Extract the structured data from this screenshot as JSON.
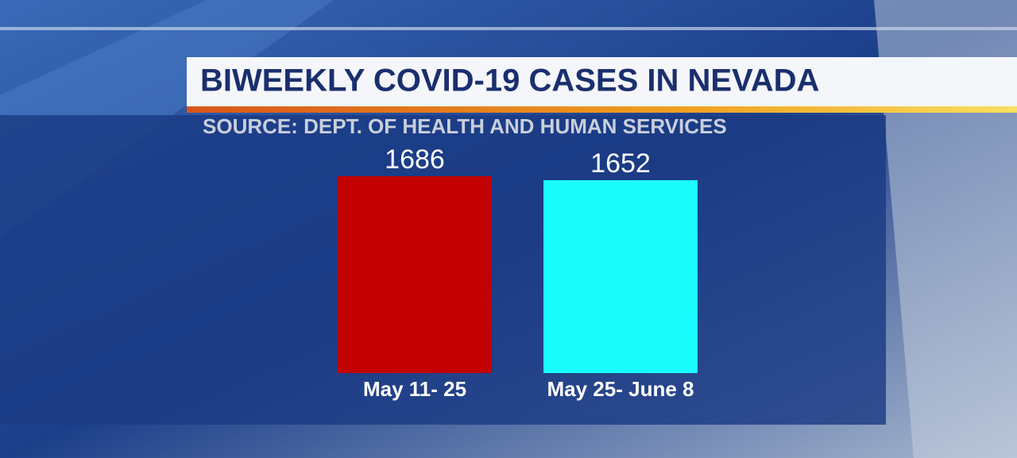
{
  "chart_data": {
    "type": "bar",
    "title": "BIWEEKLY COVID-19 CASES IN NEVADA",
    "subtitle": "SOURCE: DEPT. OF HEALTH AND HUMAN SERVICES",
    "categories": [
      "May 11- 25",
      "May 25- June 8"
    ],
    "values": [
      1686,
      1652
    ],
    "colors": [
      "#c30000",
      "#1bfcfd"
    ]
  }
}
